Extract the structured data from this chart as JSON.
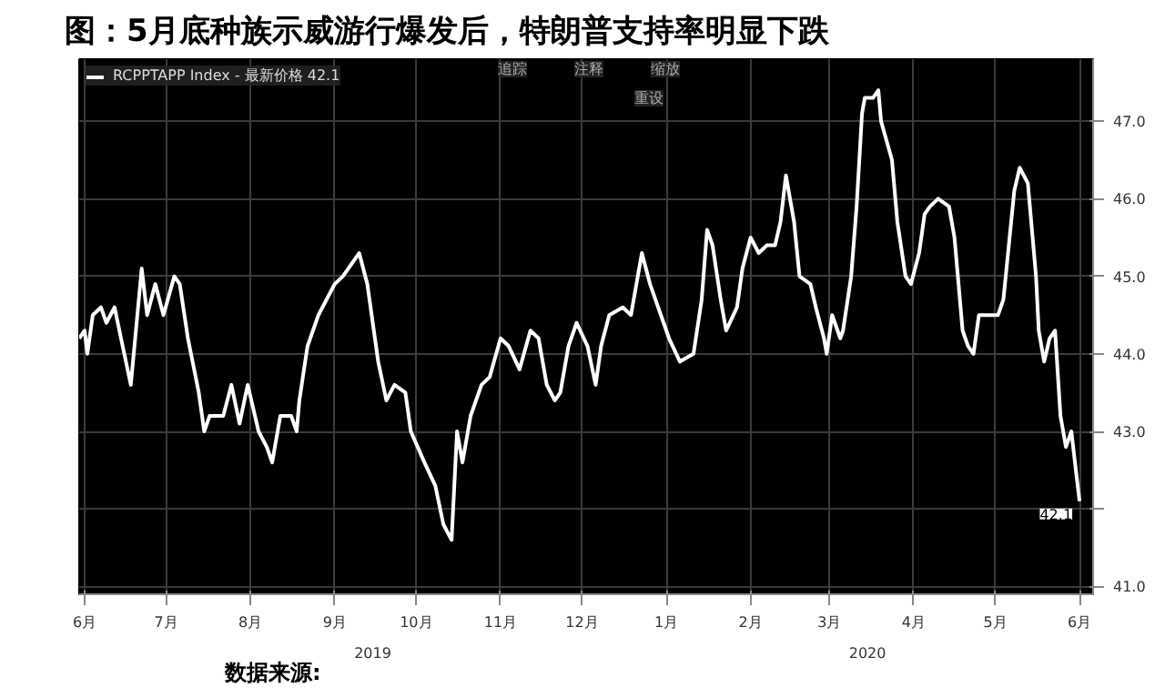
{
  "chart_data": {
    "type": "line",
    "title": "图：5月底种族示威游行爆发后，特朗普支持率明显下跌",
    "annotations": [
      "追踪",
      "注释",
      "缩放",
      "重设",
      "数据来源:",
      {
        "text": "42.1",
        "x": "2020-06-01",
        "y": 42.1
      }
    ],
    "x": [
      "2019-05-30",
      "2019-06-01",
      "2019-06-02",
      "2019-06-04",
      "2019-06-07",
      "2019-06-09",
      "2019-06-12",
      "2019-06-15",
      "2019-06-18",
      "2019-06-22",
      "2019-06-24",
      "2019-06-27",
      "2019-06-30",
      "2019-07-04",
      "2019-07-06",
      "2019-07-09",
      "2019-07-13",
      "2019-07-15",
      "2019-07-17",
      "2019-07-22",
      "2019-07-25",
      "2019-07-28",
      "2019-07-31",
      "2019-08-04",
      "2019-08-07",
      "2019-08-09",
      "2019-08-12",
      "2019-08-16",
      "2019-08-18",
      "2019-08-19",
      "2019-08-22",
      "2019-08-26",
      "2019-09-01",
      "2019-09-04",
      "2019-09-10",
      "2019-09-13",
      "2019-09-17",
      "2019-09-20",
      "2019-09-23",
      "2019-09-27",
      "2019-09-29",
      "2019-10-04",
      "2019-10-08",
      "2019-10-11",
      "2019-10-14",
      "2019-10-16",
      "2019-10-18",
      "2019-10-21",
      "2019-10-25",
      "2019-10-28",
      "2019-11-01",
      "2019-11-04",
      "2019-11-08",
      "2019-11-12",
      "2019-11-15",
      "2019-11-18",
      "2019-11-21",
      "2019-11-23",
      "2019-11-26",
      "2019-11-29",
      "2019-12-03",
      "2019-12-06",
      "2019-12-08",
      "2019-12-11",
      "2019-12-16",
      "2019-12-19",
      "2019-12-23",
      "2019-12-26",
      "2019-12-30",
      "2020-01-02",
      "2020-01-06",
      "2020-01-11",
      "2020-01-14",
      "2020-01-16",
      "2020-01-18",
      "2020-01-21",
      "2020-01-23",
      "2020-01-27",
      "2020-01-29",
      "2020-02-01",
      "2020-02-04",
      "2020-02-07",
      "2020-02-10",
      "2020-02-12",
      "2020-02-14",
      "2020-02-17",
      "2020-02-19",
      "2020-02-23",
      "2020-02-25",
      "2020-02-28",
      "2020-02-29",
      "2020-03-02",
      "2020-03-05",
      "2020-03-06",
      "2020-03-09",
      "2020-03-11",
      "2020-03-13",
      "2020-03-14",
      "2020-03-17",
      "2020-03-19",
      "2020-03-20",
      "2020-03-24",
      "2020-03-26",
      "2020-03-29",
      "2020-03-31",
      "2020-04-03",
      "2020-04-05",
      "2020-04-07",
      "2020-04-10",
      "2020-04-14",
      "2020-04-16",
      "2020-04-19",
      "2020-04-21",
      "2020-04-23",
      "2020-04-25",
      "2020-04-29",
      "2020-05-02",
      "2020-05-04",
      "2020-05-06",
      "2020-05-08",
      "2020-05-10",
      "2020-05-13",
      "2020-05-16",
      "2020-05-17",
      "2020-05-19",
      "2020-05-21",
      "2020-05-23",
      "2020-05-25",
      "2020-05-27",
      "2020-05-29",
      "2020-05-31",
      "2020-06-01"
    ],
    "series": [
      {
        "name": "RCPPTAPP Index - 最新价格 42.1",
        "color": "#ffffff",
        "values": [
          44.2,
          44.3,
          44.0,
          44.5,
          44.6,
          44.4,
          44.6,
          44.1,
          43.6,
          45.1,
          44.5,
          44.9,
          44.5,
          45.0,
          44.9,
          44.2,
          43.5,
          43.0,
          43.2,
          43.2,
          43.6,
          43.1,
          43.6,
          43.0,
          42.8,
          42.6,
          43.2,
          43.2,
          43.0,
          43.4,
          44.1,
          44.5,
          44.9,
          45.0,
          45.3,
          44.9,
          43.9,
          43.4,
          43.6,
          43.5,
          43.0,
          42.6,
          42.3,
          41.8,
          41.6,
          43.0,
          42.6,
          43.2,
          43.6,
          43.7,
          44.2,
          44.1,
          43.8,
          44.3,
          44.2,
          43.6,
          43.4,
          43.5,
          44.1,
          44.4,
          44.1,
          43.6,
          44.1,
          44.5,
          44.6,
          44.5,
          45.3,
          44.9,
          44.5,
          44.2,
          43.9,
          44.0,
          44.7,
          45.6,
          45.4,
          44.7,
          44.3,
          44.6,
          45.1,
          45.5,
          45.3,
          45.4,
          45.4,
          45.7,
          46.3,
          45.7,
          45.0,
          44.9,
          44.6,
          44.2,
          44.0,
          44.5,
          44.2,
          44.3,
          45.0,
          45.9,
          47.1,
          47.3,
          47.3,
          47.4,
          47.0,
          46.5,
          45.7,
          45.0,
          44.9,
          45.3,
          45.8,
          45.9,
          46.0,
          45.9,
          45.5,
          44.3,
          44.1,
          44.0,
          44.5,
          44.5,
          44.5,
          44.7,
          45.4,
          46.1,
          46.4,
          46.2,
          45.0,
          44.3,
          43.9,
          44.2,
          44.3,
          43.2,
          42.8,
          43.0,
          42.4,
          42.1
        ]
      }
    ],
    "xlim": [
      "2019-05-30",
      "2020-06-06"
    ],
    "xticks": [
      {
        "value": "2019-06-01",
        "label": "6月"
      },
      {
        "value": "2019-07-01",
        "label": "7月"
      },
      {
        "value": "2019-08-01",
        "label": "8月"
      },
      {
        "value": "2019-09-01",
        "label": "9月"
      },
      {
        "value": "2019-10-01",
        "label": "10月"
      },
      {
        "value": "2019-11-01",
        "label": "11月"
      },
      {
        "value": "2019-12-01",
        "label": "12月"
      },
      {
        "value": "2020-01-01",
        "label": "1月"
      },
      {
        "value": "2020-02-01",
        "label": "2月"
      },
      {
        "value": "2020-03-01",
        "label": "3月"
      },
      {
        "value": "2020-04-01",
        "label": "4月"
      },
      {
        "value": "2020-05-01",
        "label": "5月"
      },
      {
        "value": "2020-06-01",
        "label": "6月"
      }
    ],
    "x2lim": [
      "2019-05-30",
      "2020-06-06"
    ],
    "x2ticks": [
      {
        "value": "2019-09-15",
        "label": "2019"
      },
      {
        "value": "2020-03-15",
        "label": "2020"
      }
    ],
    "ylim": [
      40.9,
      47.8
    ],
    "yticks": [
      {
        "value": 41,
        "label": "41.0"
      },
      {
        "value": 42,
        "label": null
      },
      {
        "value": 43,
        "label": "43.0"
      },
      {
        "value": 44,
        "label": "44.0"
      },
      {
        "value": 45,
        "label": "45.0"
      },
      {
        "value": 46,
        "label": "46.0"
      },
      {
        "value": 47,
        "label": "47.0"
      }
    ],
    "grid": true,
    "legend": "top left",
    "line_style": "solid",
    "marker": "none"
  }
}
